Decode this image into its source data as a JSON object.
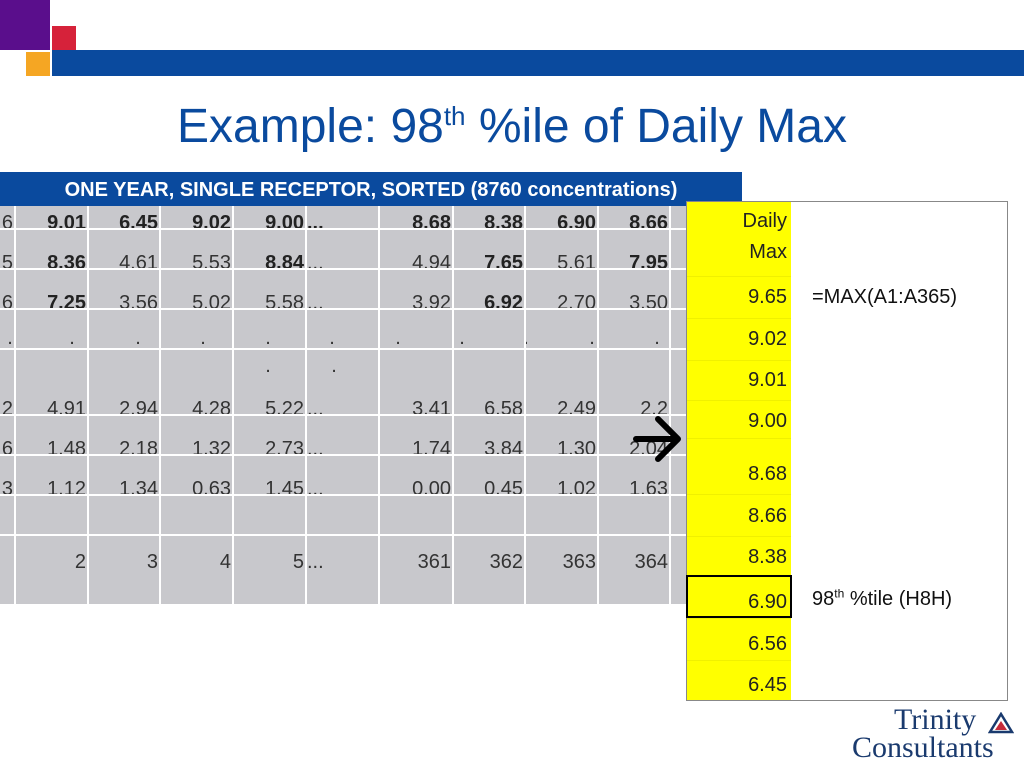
{
  "slide": {
    "title_prefix": "Example:  98",
    "title_sup": "th",
    "title_suffix": " %ile of Daily Max"
  },
  "table": {
    "header": "ONE YEAR, SINGLE RECEPTOR, SORTED (8760 concentrations)",
    "rows": [
      [
        "6",
        "9.01",
        "6.45",
        "9.02",
        "9.00",
        "...",
        "8.68",
        "8.38",
        "6.90",
        "8.66"
      ],
      [
        "5",
        "8.36",
        "4.61",
        "5.53",
        "8.84",
        "...",
        "4.94",
        "7.65",
        "5.61",
        "7.95"
      ],
      [
        "6",
        "7.25",
        "3.56",
        "5.02",
        "5.58",
        "...",
        "3.92",
        "6.92",
        "2.70",
        "3.50"
      ],
      [
        ".",
        ".",
        ".",
        ".",
        ".",
        ".",
        ".",
        ".",
        ".",
        ".",
        "."
      ],
      [
        "2",
        "4.91",
        "2.94",
        "4.28",
        "5.22",
        "...",
        "3.41",
        "6.58",
        "2.49",
        "2.2"
      ],
      [
        "6",
        "1.48",
        "2.18",
        "1.32",
        "2.73",
        "...",
        "1.74",
        "3.84",
        "1.30",
        "2.04"
      ],
      [
        "3",
        "1.12",
        "1.34",
        "0.63",
        "1.45",
        "...",
        "0.00",
        "0.45",
        "1.02",
        "1.63"
      ],
      [
        "",
        "2",
        "3",
        "4",
        "5",
        "...",
        "361",
        "362",
        "363",
        "364"
      ]
    ]
  },
  "daily_max": {
    "header_line1": "Daily",
    "header_line2": "Max",
    "values": [
      "9.65",
      "9.02",
      "9.01",
      "9.00",
      "8.68",
      "8.66",
      "8.38",
      "6.90",
      "6.56",
      "6.45"
    ],
    "formula": "=MAX(A1:A365)",
    "percentile_prefix": "98",
    "percentile_sup": "th",
    "percentile_suffix": " %tile (H8H)"
  },
  "logo": {
    "line1": "Trinity",
    "line2": "Consultants"
  },
  "colors": {
    "brand_blue": "#0a4a9e",
    "highlight_yellow": "#ffff00"
  }
}
